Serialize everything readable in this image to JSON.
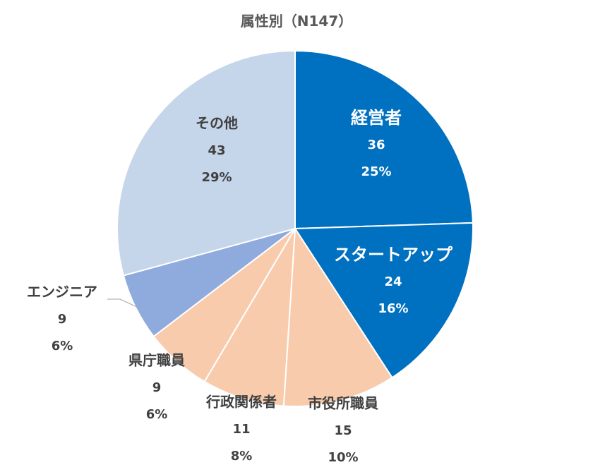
{
  "chart_data": {
    "type": "pie",
    "title": "属性別（N147）",
    "total": 147,
    "start_angle_deg": 0,
    "direction": "clockwise",
    "slices": [
      {
        "label": "経営者",
        "value": 36,
        "percent": "25%",
        "color": "#0070C0",
        "label_color": "#ffffff"
      },
      {
        "label": "スタートアップ",
        "value": 24,
        "percent": "16%",
        "color": "#0070C0",
        "label_color": "#ffffff"
      },
      {
        "label": "市役所職員",
        "value": 15,
        "percent": "10%",
        "color": "#F8CBAD",
        "label_color": "#404040"
      },
      {
        "label": "行政関係者",
        "value": 11,
        "percent": "8%",
        "color": "#F8CBAD",
        "label_color": "#404040"
      },
      {
        "label": "県庁職員",
        "value": 9,
        "percent": "6%",
        "color": "#F8CBAD",
        "label_color": "#404040"
      },
      {
        "label": "エンジニア",
        "value": 9,
        "percent": "6%",
        "color": "#8FAADC",
        "label_color": "#404040"
      },
      {
        "label": "その他",
        "value": 43,
        "percent": "29%",
        "color": "#C5D5EA",
        "label_color": "#404040"
      }
    ]
  }
}
